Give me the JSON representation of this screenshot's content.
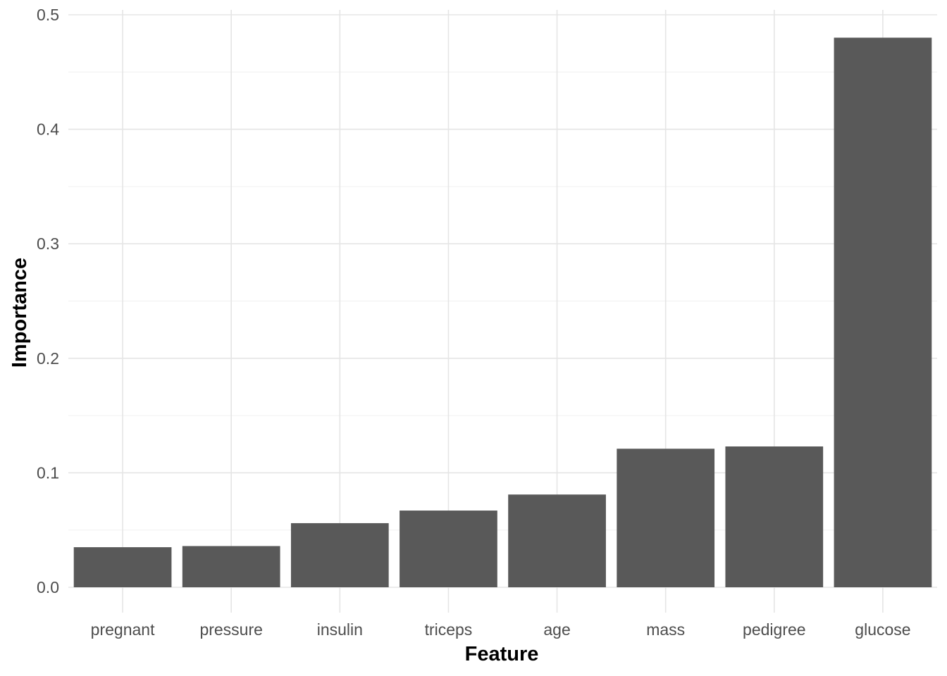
{
  "chart_data": {
    "type": "bar",
    "title": "",
    "xlabel": "Feature",
    "ylabel": "Importance",
    "categories": [
      "pregnant",
      "pressure",
      "insulin",
      "triceps",
      "age",
      "mass",
      "pedigree",
      "glucose"
    ],
    "values": [
      0.035,
      0.036,
      0.056,
      0.067,
      0.081,
      0.121,
      0.123,
      0.48
    ],
    "ylim": [
      0,
      0.5
    ],
    "yticks": [
      0.0,
      0.1,
      0.2,
      0.3,
      0.4,
      0.5
    ],
    "ytick_labels": [
      "0.0",
      "0.1",
      "0.2",
      "0.3",
      "0.4",
      "0.5"
    ],
    "grid": true,
    "legend": "none",
    "colors": {
      "bar": "#595959",
      "grid": "#e5e5e5",
      "background": "#ffffff"
    }
  }
}
